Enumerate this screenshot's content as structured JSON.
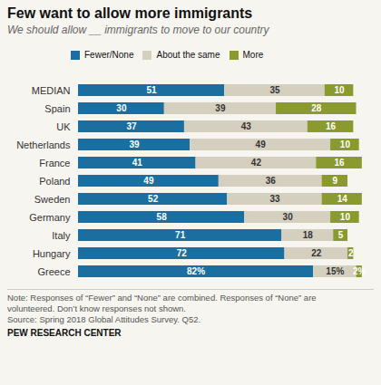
{
  "chart_data": {
    "type": "bar",
    "orientation": "horizontal",
    "stacked": true,
    "title": "Few want to allow more immigrants",
    "subtitle": "We should allow __ immigrants to move to our country",
    "categories": [
      "Greece",
      "Hungary",
      "Italy",
      "Germany",
      "Sweden",
      "Poland",
      "France",
      "Netherlands",
      "UK",
      "Spain",
      "MEDIAN"
    ],
    "series": [
      {
        "name": "Fewer/None",
        "color": "#1a6fa0",
        "values": [
          82,
          72,
          71,
          58,
          52,
          49,
          41,
          39,
          37,
          30,
          51
        ],
        "value_labels": [
          "82%",
          "72",
          "71",
          "58",
          "52",
          "49",
          "41",
          "39",
          "37",
          "30",
          "51"
        ]
      },
      {
        "name": "About the same",
        "color": "#d5cfc0",
        "values": [
          15,
          22,
          18,
          30,
          33,
          36,
          42,
          49,
          43,
          39,
          35
        ],
        "value_labels": [
          "15%",
          "22",
          "18",
          "30",
          "33",
          "36",
          "42",
          "49",
          "43",
          "39",
          "35"
        ]
      },
      {
        "name": "More",
        "color": "#8a9a2e",
        "values": [
          2,
          2,
          5,
          10,
          14,
          9,
          16,
          10,
          16,
          28,
          10
        ],
        "value_labels": [
          "2%",
          "2",
          "5",
          "10",
          "14",
          "9",
          "16",
          "10",
          "16",
          "28",
          "10"
        ]
      }
    ],
    "xlim": [
      0,
      100
    ],
    "tick_labels": "y",
    "data_labels": true,
    "legend": "top",
    "notes": [
      "Note: Responses of “Fewer” and “None” are combined. Responses of “None” are",
      "volunteered. Don’t know responses not shown.",
      "Source: Spring 2018 Global Attitudes Survey. Q52."
    ],
    "source": "PEW RESEARCH CENTER"
  }
}
